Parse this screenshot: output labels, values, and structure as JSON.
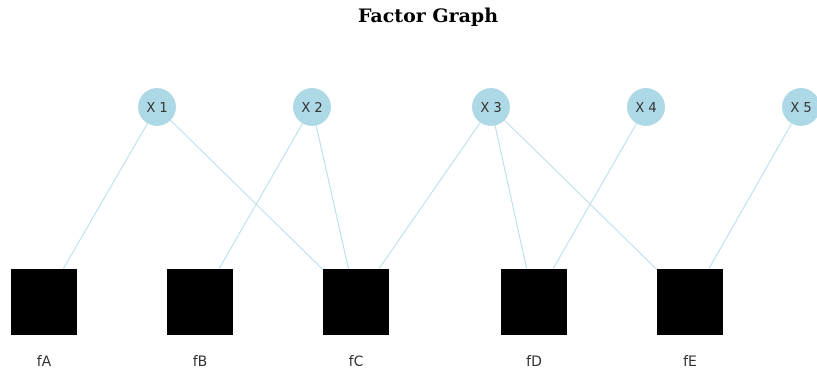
{
  "title": "Factor Graph",
  "colors": {
    "variable_fill": "#add8e6",
    "factor_fill": "#000000",
    "edge": "#b9dde8"
  },
  "variables": [
    {
      "id": "X1",
      "label": "X 1"
    },
    {
      "id": "X2",
      "label": "X 2"
    },
    {
      "id": "X3",
      "label": "X 3"
    },
    {
      "id": "X4",
      "label": "X 4"
    },
    {
      "id": "X5",
      "label": "X 5"
    }
  ],
  "factors": [
    {
      "id": "fA",
      "label": "fA"
    },
    {
      "id": "fB",
      "label": "fB"
    },
    {
      "id": "fC",
      "label": "fC"
    },
    {
      "id": "fD",
      "label": "fD"
    },
    {
      "id": "fE",
      "label": "fE"
    }
  ],
  "edges": [
    {
      "from": "X1",
      "to": "fA"
    },
    {
      "from": "X1",
      "to": "fC"
    },
    {
      "from": "X2",
      "to": "fB"
    },
    {
      "from": "X2",
      "to": "fC"
    },
    {
      "from": "X3",
      "to": "fC"
    },
    {
      "from": "X3",
      "to": "fD"
    },
    {
      "from": "X3",
      "to": "fE"
    },
    {
      "from": "X4",
      "to": "fD"
    },
    {
      "from": "X5",
      "to": "fE"
    }
  ]
}
